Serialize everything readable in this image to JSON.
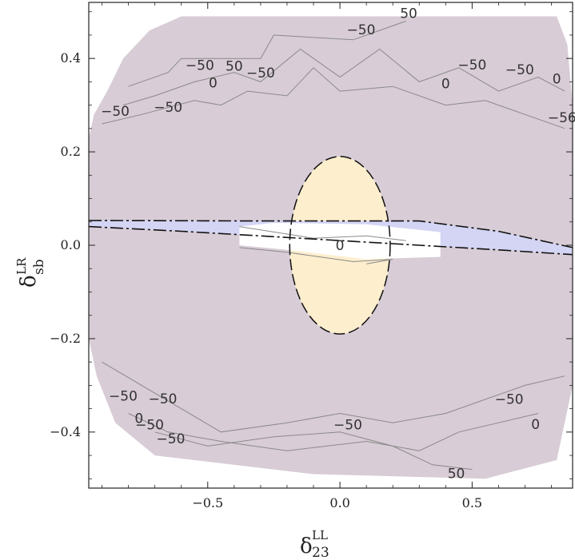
{
  "chart_data": {
    "type": "contour",
    "xlabel": {
      "main": "δ",
      "sup": "LL",
      "sub": "23"
    },
    "ylabel": {
      "main": "δ",
      "sup": "LR",
      "sub": "sb"
    },
    "xlim": [
      -0.95,
      0.88
    ],
    "ylim": [
      -0.52,
      0.52
    ],
    "x_ticks": [
      -0.5,
      0.0,
      0.5
    ],
    "x_tick_labels": [
      "−0.5",
      "0.0",
      "0.5"
    ],
    "y_ticks": [
      -0.4,
      -0.2,
      0.0,
      0.2,
      0.4
    ],
    "y_tick_labels": [
      "−0.4",
      "−0.2",
      "0.0",
      "0.2",
      "0.4"
    ],
    "grid": false,
    "colors": {
      "background_region": "#d8ccd6",
      "circle_region": "#fdeecd",
      "band_region": "#d4d4f4",
      "white_region": "#ffffff",
      "contour_line": "#8a8a8a",
      "dashed_line": "#111111"
    },
    "regions": {
      "outer_polygon": [
        [
          -0.95,
          0.23
        ],
        [
          -0.93,
          0.28
        ],
        [
          -0.88,
          0.33
        ],
        [
          -0.82,
          0.4
        ],
        [
          -0.72,
          0.46
        ],
        [
          -0.6,
          0.49
        ],
        [
          0.25,
          0.49
        ],
        [
          0.82,
          0.49
        ],
        [
          0.86,
          0.43
        ],
        [
          0.88,
          0.3
        ],
        [
          0.88,
          -0.3
        ],
        [
          0.82,
          -0.46
        ],
        [
          0.55,
          -0.5
        ],
        [
          -0.1,
          -0.49
        ],
        [
          -0.7,
          -0.45
        ],
        [
          -0.85,
          -0.38
        ],
        [
          -0.92,
          -0.28
        ],
        [
          -0.95,
          -0.2
        ]
      ],
      "circle": {
        "cx": 0.0,
        "cy": 0.0,
        "r": 0.19
      },
      "band_polygon": [
        [
          -0.95,
          0.053
        ],
        [
          -0.6,
          0.053
        ],
        [
          -0.3,
          0.052
        ],
        [
          0.3,
          0.052
        ],
        [
          0.6,
          0.03
        ],
        [
          0.88,
          -0.005
        ],
        [
          0.88,
          -0.02
        ],
        [
          0.6,
          -0.01
        ],
        [
          0.3,
          0.0
        ],
        [
          -0.3,
          0.02
        ],
        [
          -0.6,
          0.03
        ],
        [
          -0.95,
          0.04
        ]
      ],
      "white_polygon": [
        [
          -0.38,
          0.04
        ],
        [
          -0.25,
          0.048
        ],
        [
          0.1,
          0.045
        ],
        [
          0.38,
          0.028
        ],
        [
          0.38,
          -0.025
        ],
        [
          0.1,
          -0.03
        ],
        [
          -0.2,
          -0.01
        ],
        [
          -0.38,
          0.0
        ]
      ]
    },
    "contour_lines": [
      {
        "value": 50,
        "points": [
          [
            -0.8,
            0.34
          ],
          [
            -0.65,
            0.37
          ],
          [
            -0.6,
            0.4
          ],
          [
            -0.3,
            0.4
          ],
          [
            -0.25,
            0.45
          ],
          [
            0.05,
            0.44
          ],
          [
            0.15,
            0.46
          ],
          [
            0.25,
            0.48
          ]
        ]
      },
      {
        "value": -50,
        "points": [
          [
            -0.82,
            0.3
          ],
          [
            -0.7,
            0.32
          ],
          [
            -0.55,
            0.35
          ],
          [
            -0.4,
            0.37
          ],
          [
            -0.3,
            0.35
          ],
          [
            -0.15,
            0.42
          ],
          [
            0.0,
            0.36
          ],
          [
            0.15,
            0.42
          ],
          [
            0.3,
            0.35
          ],
          [
            0.45,
            0.38
          ],
          [
            0.6,
            0.33
          ],
          [
            0.75,
            0.36
          ],
          [
            0.85,
            0.33
          ]
        ]
      },
      {
        "value": 0,
        "points": [
          [
            -0.9,
            0.26
          ],
          [
            -0.75,
            0.28
          ],
          [
            -0.55,
            0.31
          ],
          [
            -0.45,
            0.3
          ],
          [
            -0.35,
            0.33
          ],
          [
            -0.2,
            0.32
          ],
          [
            -0.1,
            0.38
          ],
          [
            0.0,
            0.33
          ],
          [
            0.2,
            0.34
          ],
          [
            0.4,
            0.3
          ],
          [
            0.55,
            0.31
          ],
          [
            0.7,
            0.28
          ],
          [
            0.85,
            0.25
          ]
        ]
      },
      {
        "value": -50,
        "points": [
          [
            -0.9,
            -0.25
          ],
          [
            -0.75,
            -0.3
          ],
          [
            -0.6,
            -0.35
          ],
          [
            -0.45,
            -0.4
          ],
          [
            -0.2,
            -0.38
          ],
          [
            0.0,
            -0.36
          ],
          [
            0.2,
            -0.38
          ],
          [
            0.4,
            -0.36
          ],
          [
            0.55,
            -0.33
          ],
          [
            0.7,
            -0.3
          ],
          [
            0.85,
            -0.28
          ]
        ]
      },
      {
        "value": 50,
        "points": [
          [
            -0.7,
            -0.4
          ],
          [
            -0.5,
            -0.43
          ],
          [
            -0.25,
            -0.41
          ],
          [
            0.0,
            -0.4
          ],
          [
            0.2,
            -0.43
          ],
          [
            0.35,
            -0.47
          ],
          [
            0.5,
            -0.48
          ]
        ]
      },
      {
        "value": 0,
        "points": [
          [
            -0.8,
            -0.36
          ],
          [
            -0.65,
            -0.4
          ],
          [
            -0.45,
            -0.42
          ],
          [
            -0.2,
            -0.44
          ],
          [
            0.1,
            -0.42
          ],
          [
            0.3,
            -0.44
          ],
          [
            0.45,
            -0.4
          ],
          [
            0.6,
            -0.38
          ],
          [
            0.75,
            -0.36
          ]
        ]
      },
      {
        "value": 0,
        "points": [
          [
            -0.38,
            0.04
          ],
          [
            -0.1,
            0.015
          ],
          [
            0.1,
            0.02
          ],
          [
            0.25,
            0.01
          ]
        ]
      },
      {
        "value": 0,
        "points": [
          [
            -0.38,
            -0.005
          ],
          [
            -0.2,
            -0.015
          ],
          [
            0.05,
            -0.035
          ],
          [
            0.2,
            -0.03
          ],
          [
            0.1,
            -0.04
          ]
        ]
      }
    ],
    "dashed_boundaries": [
      {
        "points": [
          [
            -0.95,
            0.053
          ],
          [
            -0.3,
            0.052
          ],
          [
            0.3,
            0.052
          ],
          [
            0.6,
            0.03
          ],
          [
            0.88,
            -0.005
          ]
        ]
      },
      {
        "points": [
          [
            -0.95,
            0.04
          ],
          [
            -0.6,
            0.03
          ],
          [
            -0.3,
            0.02
          ],
          [
            0.3,
            0.0
          ],
          [
            0.6,
            -0.01
          ],
          [
            0.88,
            -0.02
          ]
        ]
      }
    ],
    "contour_labels": [
      {
        "text": "50",
        "x": 0.26,
        "y": 0.495
      },
      {
        "text": "−50",
        "x": 0.08,
        "y": 0.46
      },
      {
        "text": "−50",
        "x": -0.53,
        "y": 0.384
      },
      {
        "text": "50",
        "x": -0.4,
        "y": 0.382
      },
      {
        "text": "−50",
        "x": -0.3,
        "y": 0.368
      },
      {
        "text": "0",
        "x": -0.48,
        "y": 0.346
      },
      {
        "text": "−50",
        "x": 0.5,
        "y": 0.385
      },
      {
        "text": "−50",
        "x": 0.68,
        "y": 0.375
      },
      {
        "text": "0",
        "x": 0.4,
        "y": 0.345
      },
      {
        "text": "0",
        "x": 0.82,
        "y": 0.355
      },
      {
        "text": "−50",
        "x": -0.85,
        "y": 0.286
      },
      {
        "text": "−50",
        "x": -0.65,
        "y": 0.294
      },
      {
        "text": "−56",
        "x": 0.84,
        "y": 0.272
      },
      {
        "text": "0",
        "x": 0.0,
        "y": -0.002
      },
      {
        "text": "−50",
        "x": -0.82,
        "y": -0.324
      },
      {
        "text": "−50",
        "x": -0.67,
        "y": -0.33
      },
      {
        "text": "0",
        "x": -0.76,
        "y": -0.372
      },
      {
        "text": "−50",
        "x": -0.72,
        "y": -0.386
      },
      {
        "text": "−50",
        "x": -0.64,
        "y": -0.416
      },
      {
        "text": "−50",
        "x": 0.03,
        "y": -0.386
      },
      {
        "text": "−50",
        "x": 0.64,
        "y": -0.331
      },
      {
        "text": "0",
        "x": 0.74,
        "y": -0.385
      },
      {
        "text": "50",
        "x": 0.44,
        "y": -0.49
      }
    ]
  }
}
